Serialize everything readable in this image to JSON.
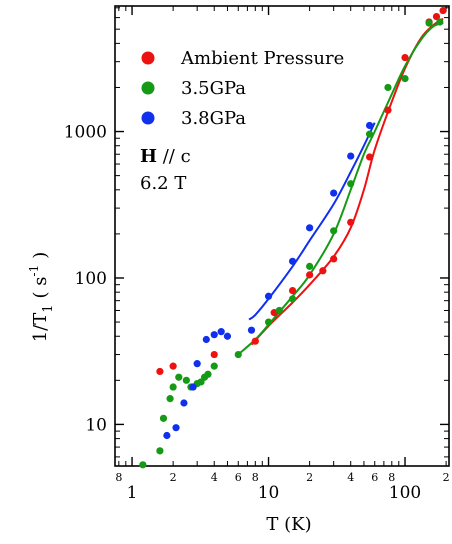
{
  "chart_data": {
    "type": "scatter",
    "xlabel": "T (K)",
    "ylabel_main": "1/T",
    "ylabel_sub": "1",
    "ylabel_unit": "( s",
    "ylabel_exp": "-1",
    "ylabel_close": ")",
    "x_scale": "log",
    "y_scale": "log",
    "xlim": [
      0.75,
      210
    ],
    "ylim": [
      5.2,
      7200
    ],
    "x_major_ticks": [
      {
        "value": 1,
        "label": "1"
      },
      {
        "value": 10,
        "label": "10"
      },
      {
        "value": 100,
        "label": "100"
      }
    ],
    "x_minor_ticks": [
      {
        "value": 0.8,
        "label": "8"
      },
      {
        "value": 2,
        "label": "2"
      },
      {
        "value": 4,
        "label": "4"
      },
      {
        "value": 6,
        "label": "6"
      },
      {
        "value": 8,
        "label": "8"
      },
      {
        "value": 20,
        "label": "2"
      },
      {
        "value": 40,
        "label": "4"
      },
      {
        "value": 60,
        "label": "6"
      },
      {
        "value": 80,
        "label": "8"
      },
      {
        "value": 200,
        "label": "2"
      }
    ],
    "y_major_ticks": [
      {
        "value": 10,
        "label": "10"
      },
      {
        "value": 100,
        "label": "100"
      },
      {
        "value": 1000,
        "label": "1000"
      }
    ],
    "legend_position": "top-left",
    "annotations": {
      "field_bold": "H",
      "field_rest": " // c",
      "field_value": "6.2 T"
    },
    "series": [
      {
        "name": "Ambient Pressure",
        "color": "#ee1111",
        "points": [
          [
            1.6,
            23
          ],
          [
            2.0,
            25
          ],
          [
            4.0,
            30
          ],
          [
            8.0,
            37
          ],
          [
            11.0,
            58
          ],
          [
            15.0,
            82
          ],
          [
            20.0,
            105
          ],
          [
            25.0,
            112
          ],
          [
            30.0,
            135
          ],
          [
            40.0,
            240
          ],
          [
            55.0,
            670
          ],
          [
            75.0,
            1400
          ],
          [
            100.0,
            3200
          ],
          [
            150.0,
            5600
          ],
          [
            170.0,
            6100
          ],
          [
            190.0,
            6700
          ]
        ],
        "fit": [
          [
            7.5,
            35
          ],
          [
            10,
            47
          ],
          [
            15,
            68
          ],
          [
            20,
            90
          ],
          [
            30,
            140
          ],
          [
            40,
            220
          ],
          [
            50,
            400
          ],
          [
            60,
            750
          ],
          [
            80,
            1600
          ],
          [
            100,
            2700
          ],
          [
            130,
            4300
          ],
          [
            160,
            5300
          ],
          [
            190,
            5900
          ]
        ]
      },
      {
        "name": "3.5GPa",
        "color": "#159a15",
        "points": [
          [
            1.2,
            5.3
          ],
          [
            1.6,
            6.6
          ],
          [
            1.7,
            11
          ],
          [
            1.9,
            15
          ],
          [
            2.0,
            18
          ],
          [
            2.2,
            21
          ],
          [
            2.5,
            20
          ],
          [
            2.7,
            18
          ],
          [
            3.0,
            19
          ],
          [
            3.2,
            19.5
          ],
          [
            3.4,
            21
          ],
          [
            3.6,
            22
          ],
          [
            4.0,
            25
          ],
          [
            6.0,
            30
          ],
          [
            10.0,
            50
          ],
          [
            12.0,
            60
          ],
          [
            15.0,
            72
          ],
          [
            20.0,
            120
          ],
          [
            30.0,
            210
          ],
          [
            40.0,
            440
          ],
          [
            55.0,
            960
          ],
          [
            75.0,
            2000
          ],
          [
            100.0,
            2300
          ],
          [
            150.0,
            5500
          ],
          [
            180.0,
            5600
          ]
        ],
        "fit": [
          [
            6,
            30
          ],
          [
            8,
            38
          ],
          [
            10,
            48
          ],
          [
            15,
            75
          ],
          [
            20,
            105
          ],
          [
            30,
            200
          ],
          [
            40,
            400
          ],
          [
            50,
            700
          ],
          [
            60,
            1000
          ],
          [
            80,
            1800
          ],
          [
            100,
            2800
          ],
          [
            130,
            4200
          ],
          [
            160,
            5200
          ],
          [
            190,
            5500
          ]
        ]
      },
      {
        "name": "3.8GPa",
        "color": "#1030ee",
        "points": [
          [
            1.8,
            8.4
          ],
          [
            2.1,
            9.5
          ],
          [
            2.4,
            14
          ],
          [
            2.8,
            18
          ],
          [
            3.0,
            26
          ],
          [
            3.5,
            38
          ],
          [
            4.0,
            41
          ],
          [
            4.5,
            43
          ],
          [
            5.0,
            40
          ],
          [
            7.5,
            44
          ],
          [
            10.0,
            75
          ],
          [
            15.0,
            130
          ],
          [
            20.0,
            220
          ],
          [
            30.0,
            380
          ],
          [
            40.0,
            680
          ],
          [
            55.0,
            1100
          ]
        ],
        "fit": [
          [
            7.2,
            52
          ],
          [
            8,
            56
          ],
          [
            10,
            72
          ],
          [
            15,
            120
          ],
          [
            20,
            180
          ],
          [
            30,
            320
          ],
          [
            40,
            530
          ],
          [
            50,
            800
          ],
          [
            60,
            1150
          ]
        ]
      }
    ]
  }
}
